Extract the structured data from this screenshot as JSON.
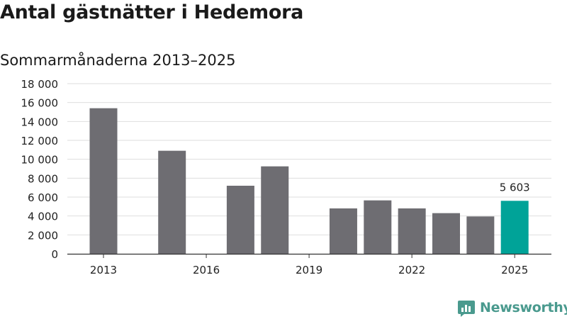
{
  "chart_data": {
    "type": "bar",
    "title": "Antal gästnätter i Hedemora",
    "subtitle": "Sommarmånaderna 2013–2025",
    "categories": [
      "2013",
      "2014",
      "2015",
      "2016",
      "2017",
      "2018",
      "2019",
      "2020",
      "2021",
      "2022",
      "2023",
      "2024",
      "2025"
    ],
    "values": [
      15400,
      null,
      10900,
      null,
      7200,
      9250,
      null,
      4800,
      5650,
      4800,
      4300,
      3950,
      5603
    ],
    "x_tick_labels": [
      "2013",
      "2016",
      "2019",
      "2022",
      "2025"
    ],
    "y_ticks": [
      0,
      2000,
      4000,
      6000,
      8000,
      10000,
      12000,
      14000,
      16000,
      18000
    ],
    "y_tick_labels": [
      "0",
      "2 000",
      "4 000",
      "6 000",
      "8 000",
      "10 000",
      "12 000",
      "14 000",
      "16 000",
      "18 000"
    ],
    "ylim": [
      0,
      18000
    ],
    "data_labels": [
      {
        "category": "2025",
        "text": "5 603"
      }
    ],
    "grid": true,
    "colors": {
      "default": "#6e6d72",
      "highlight": "#00a398"
    },
    "highlight_category": "2025"
  },
  "branding": {
    "logo_text": "Newsworthy",
    "logo_icon": "newsworthy-chart-icon",
    "logo_color": "#4a9a8e"
  }
}
